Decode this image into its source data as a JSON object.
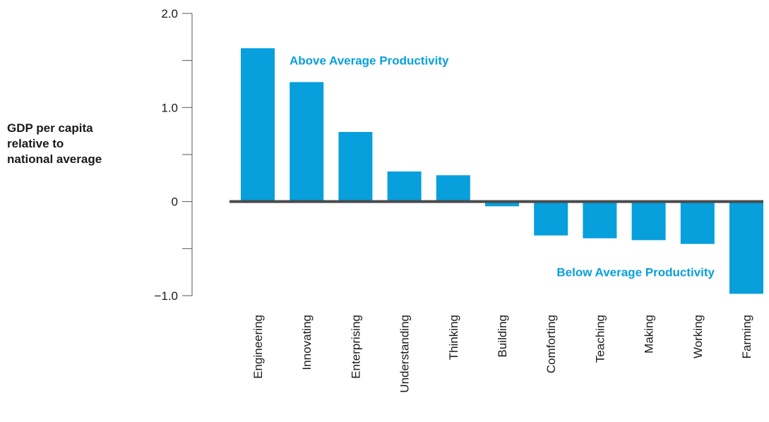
{
  "chart_data": {
    "type": "bar",
    "ylabel_lines": [
      "GDP per capita",
      "relative to",
      "national average"
    ],
    "xlabel": "",
    "ylim": [
      -1.0,
      2.0
    ],
    "yticks": [
      {
        "value": 2.0,
        "label": "2.0"
      },
      {
        "value": 1.5,
        "label": ""
      },
      {
        "value": 1.0,
        "label": "1.0"
      },
      {
        "value": 0.5,
        "label": ""
      },
      {
        "value": 0,
        "label": "0"
      },
      {
        "value": -0.5,
        "label": ""
      },
      {
        "value": -1.0,
        "label": "−1.0"
      }
    ],
    "categories": [
      "Engineering",
      "Innovating",
      "Enterprising",
      "Understanding",
      "Thinking",
      "Building",
      "Comforting",
      "Teaching",
      "Making",
      "Working",
      "Farming"
    ],
    "values": [
      1.63,
      1.27,
      0.74,
      0.32,
      0.28,
      -0.05,
      -0.36,
      -0.39,
      -0.41,
      -0.45,
      -0.98
    ],
    "annotations": [
      {
        "text": "Above Average Productivity",
        "value": 1.5
      },
      {
        "text": "Below Average Productivity",
        "value": -0.75
      }
    ],
    "colors": {
      "bar": "#079fdc",
      "annotation": "#079fdc",
      "axis": "#555555",
      "zero_line": "#4a4a4a"
    },
    "grid": false
  }
}
